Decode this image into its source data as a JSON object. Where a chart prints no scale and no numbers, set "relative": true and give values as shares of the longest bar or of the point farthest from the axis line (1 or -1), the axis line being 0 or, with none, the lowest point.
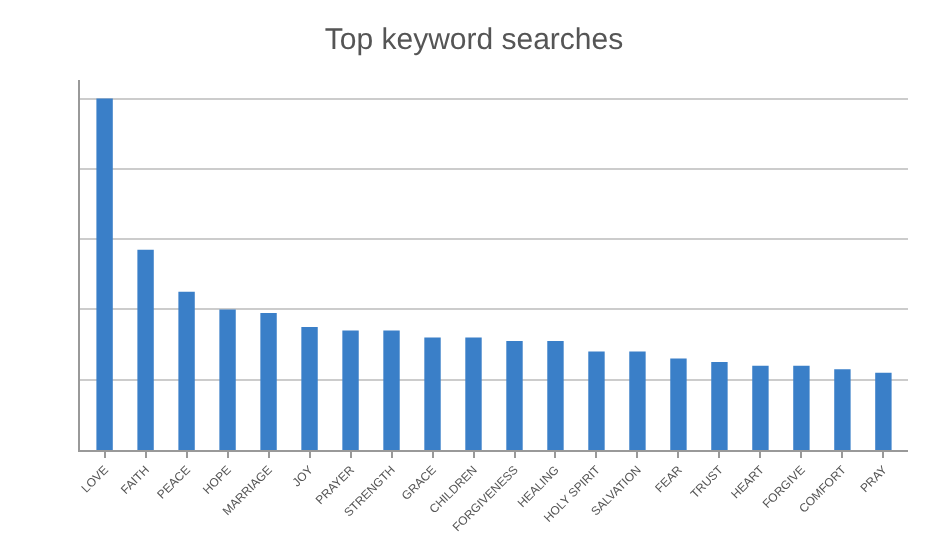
{
  "chart_data": {
    "type": "bar",
    "title": "Top keyword searches",
    "relative": true,
    "grid": "y",
    "color": "#3a7fc8",
    "categories": [
      "LOVE",
      "FAITH",
      "PEACE",
      "HOPE",
      "MARRIAGE",
      "JOY",
      "PRAYER",
      "STRENGTH",
      "GRACE",
      "CHILDREN",
      "FORGIVENESS",
      "HEALING",
      "HOLY SPIRIT",
      "SALVATION",
      "FEAR",
      "TRUST",
      "HEART",
      "FORGIVE",
      "COMFORT",
      "PRAY"
    ],
    "values": [
      1,
      0.57,
      0.45,
      0.4,
      0.39,
      0.35,
      0.34,
      0.34,
      0.32,
      0.32,
      0.31,
      0.31,
      0.28,
      0.28,
      0.26,
      0.25,
      0.24,
      0.24,
      0.23,
      0.22
    ]
  }
}
